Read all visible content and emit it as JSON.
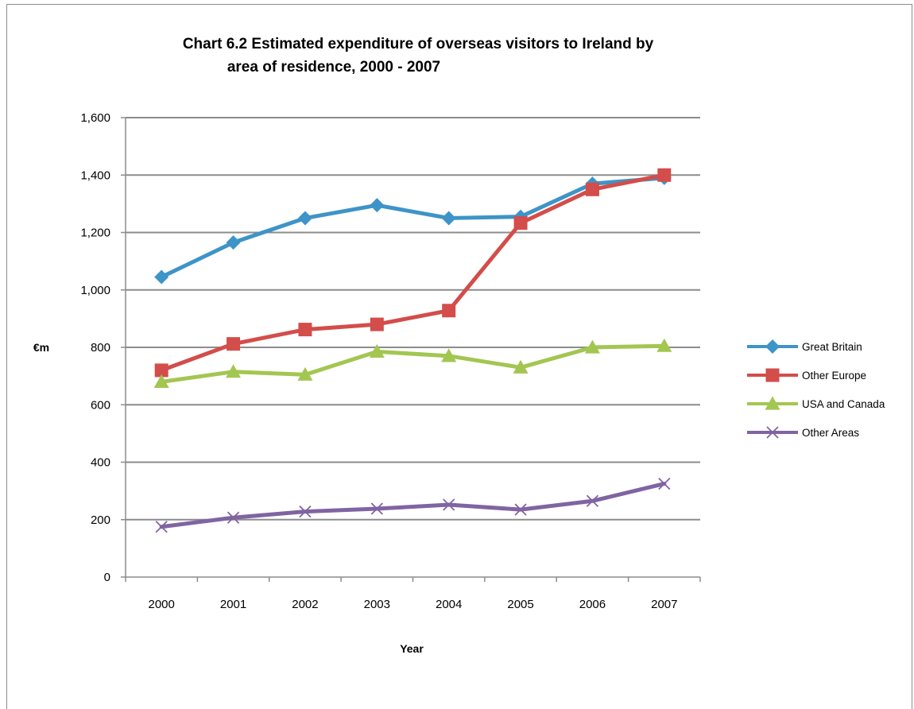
{
  "chart_data": {
    "type": "line",
    "title_lines": [
      "Chart 6.2 Estimated expenditure of overseas visitors to Ireland by",
      "area of residence, 2000 - 2007"
    ],
    "xlabel": "Year",
    "ylabel": "€m",
    "categories": [
      "2000",
      "2001",
      "2002",
      "2003",
      "2004",
      "2005",
      "2006",
      "2007"
    ],
    "ylim": [
      0,
      1600
    ],
    "yticks": [
      0,
      200,
      400,
      600,
      800,
      1000,
      1200,
      1400,
      1600
    ],
    "ytick_labels": [
      "0",
      "200",
      "400",
      "600",
      "800",
      "1,000",
      "1,200",
      "1,400",
      "1,600"
    ],
    "grid": true,
    "legend_position": "right",
    "series": [
      {
        "name": "Great Britain",
        "color": "#3d94c8",
        "marker": "diamond",
        "values": [
          1045,
          1165,
          1250,
          1295,
          1250,
          1255,
          1370,
          1390
        ]
      },
      {
        "name": "Other Europe",
        "color": "#d34d4a",
        "marker": "square",
        "values": [
          720,
          812,
          862,
          880,
          928,
          1233,
          1350,
          1400
        ]
      },
      {
        "name": "USA and Canada",
        "color": "#a3c651",
        "marker": "triangle",
        "values": [
          680,
          715,
          705,
          785,
          770,
          730,
          800,
          805
        ]
      },
      {
        "name": "Other Areas",
        "color": "#8064a2",
        "marker": "x",
        "values": [
          175,
          207,
          228,
          238,
          252,
          235,
          265,
          325
        ]
      }
    ]
  }
}
